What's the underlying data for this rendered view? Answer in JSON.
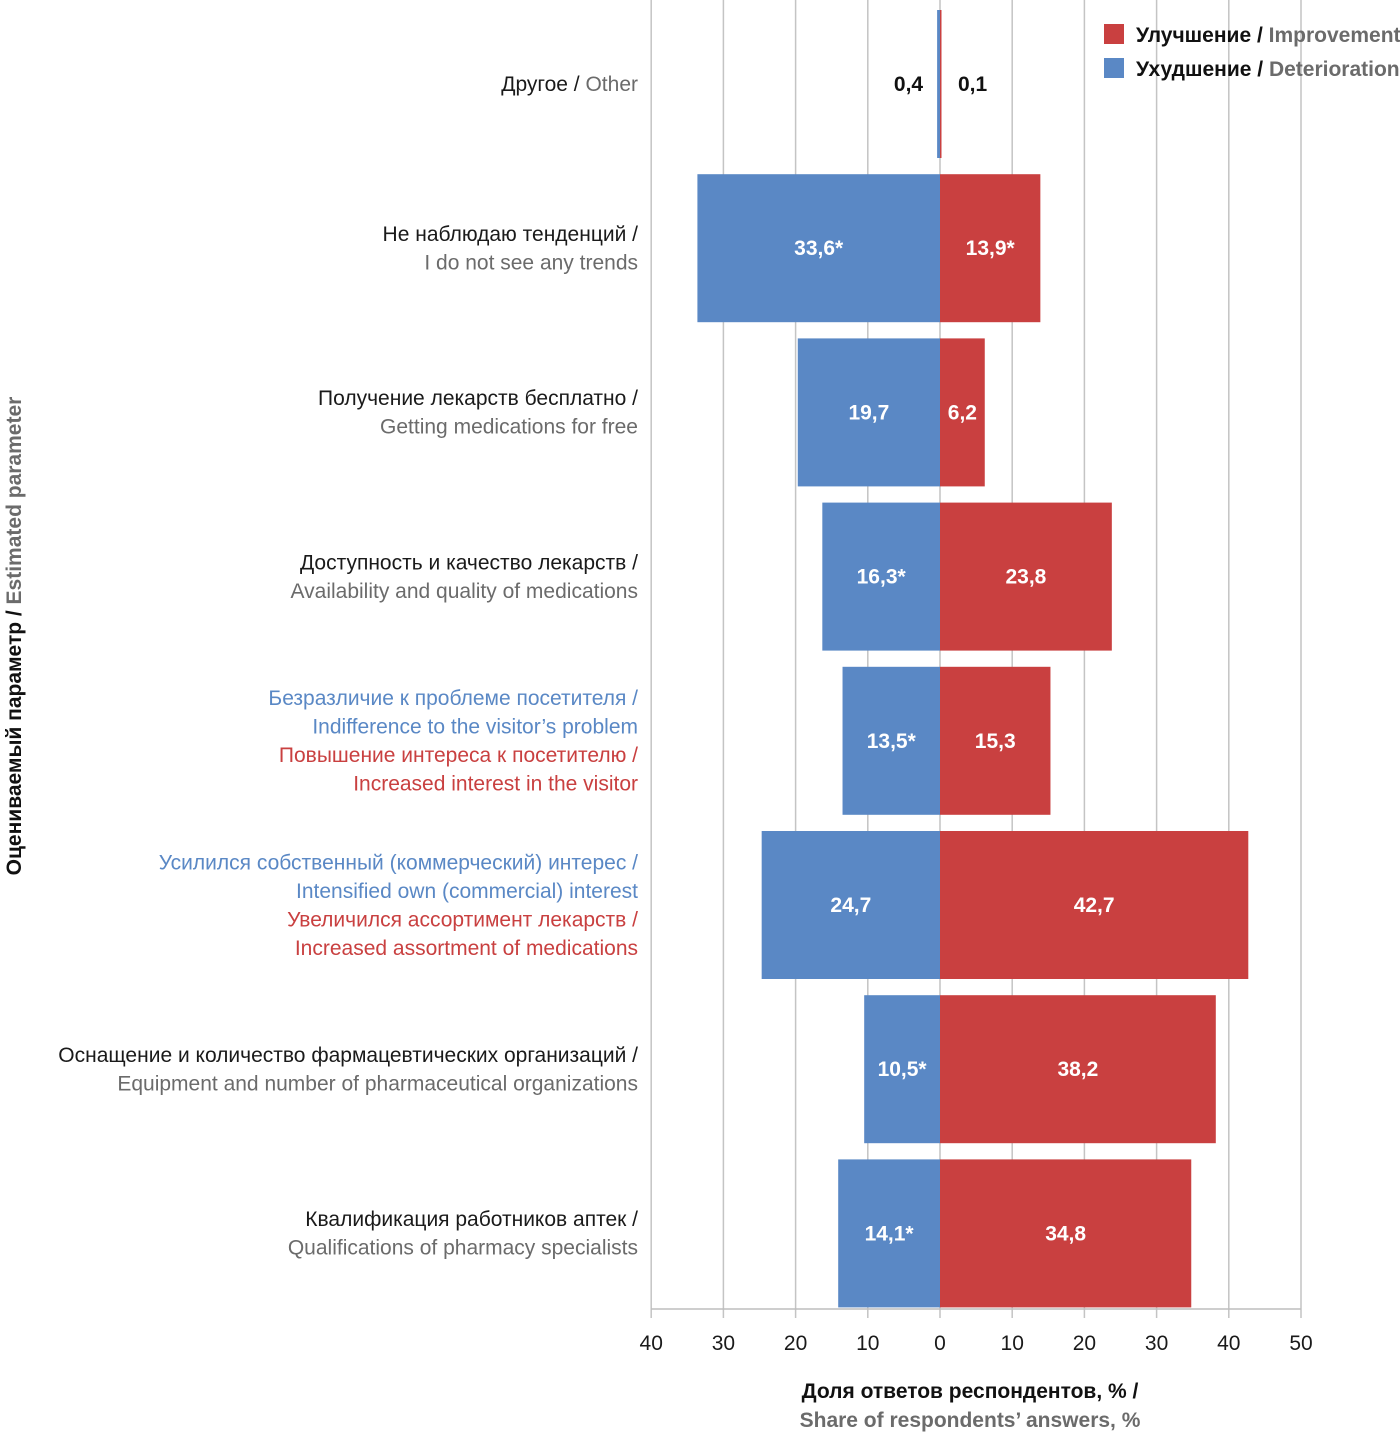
{
  "chart_data": {
    "type": "bar",
    "orientation": "horizontal-diverging",
    "title": "",
    "xlabel": {
      "ru": "Доля ответов респондентов, % /",
      "en": "Share of respondents’ answers, %"
    },
    "ylabel": {
      "ru": "Оцениваемый параметр / ",
      "en": "Estimated parameter"
    },
    "xlim": [
      -40,
      50
    ],
    "x_ticks": [
      "40",
      "30",
      "20",
      "10",
      "0",
      "10",
      "20",
      "30",
      "40",
      "50"
    ],
    "x_tick_values": [
      -40,
      -30,
      -20,
      -10,
      0,
      10,
      20,
      30,
      40,
      50
    ],
    "grid": true,
    "legend_position": "top-right",
    "legend": [
      {
        "ru": "Улучшение",
        "sep": " / ",
        "en": "Improvement",
        "color": "#c94040"
      },
      {
        "ru": "Ухудшение",
        "sep": " / ",
        "en": "Deterioration",
        "color": "#5a88c5"
      }
    ],
    "series": [
      {
        "name": "Ухудшение / Deterioration",
        "color": "#5a88c5",
        "side": "left",
        "values": [
          0.4,
          33.6,
          19.7,
          16.3,
          13.5,
          24.7,
          10.5,
          14.1
        ],
        "labels": [
          "0,4",
          "33,6*",
          "19,7",
          "16,3*",
          "13,5*",
          "24,7",
          "10,5*",
          "14,1*"
        ]
      },
      {
        "name": "Улучшение / Improvement",
        "color": "#c94040",
        "side": "right",
        "values": [
          0.1,
          13.9,
          6.2,
          23.8,
          15.3,
          42.7,
          38.2,
          34.8
        ],
        "labels": [
          "0,1",
          "13,9*",
          "6,2",
          "23,8",
          "15,3",
          "42,7",
          "38,2",
          "34,8"
        ]
      }
    ],
    "categories": [
      {
        "lines": [
          {
            "text": "Другое / ",
            "style": "ru",
            "inline_next": true
          },
          {
            "text": "Other",
            "style": "en"
          }
        ]
      },
      {
        "lines": [
          {
            "text": "Не наблюдаю тенденций /",
            "style": "ru"
          },
          {
            "text": "I do not see any trends",
            "style": "en"
          }
        ]
      },
      {
        "lines": [
          {
            "text": "Получение лекарств бесплатно /",
            "style": "ru"
          },
          {
            "text": "Getting medications for free",
            "style": "en"
          }
        ]
      },
      {
        "lines": [
          {
            "text": "Доступность и качество лекарств /",
            "style": "ru"
          },
          {
            "text": "Availability and quality of medications",
            "style": "en"
          }
        ]
      },
      {
        "lines": [
          {
            "text": "Безразличие к проблеме посетителя /",
            "style": "blue"
          },
          {
            "text": "Indifference to the visitor’s problem",
            "style": "blue"
          },
          {
            "text": "Повышение интереса к посетителю /",
            "style": "red"
          },
          {
            "text": "Increased interest in the visitor",
            "style": "red"
          }
        ]
      },
      {
        "lines": [
          {
            "text": "Усилился собственный (коммерческий) интерес /",
            "style": "blue"
          },
          {
            "text": "Intensified own (commercial) interest",
            "style": "blue"
          },
          {
            "text": "Увеличился ассортимент лекарств /",
            "style": "red"
          },
          {
            "text": "Increased assortment of medications",
            "style": "red"
          }
        ]
      },
      {
        "lines": [
          {
            "text": "Оснащение и количество фармацевтических организаций /",
            "style": "ru"
          },
          {
            "text": "Equipment and number of pharmaceutical organizations",
            "style": "en"
          }
        ]
      },
      {
        "lines": [
          {
            "text": "Квалификация работников аптек /",
            "style": "ru"
          },
          {
            "text": "Qualifications of pharmacy specialists",
            "style": "en"
          }
        ]
      }
    ]
  }
}
